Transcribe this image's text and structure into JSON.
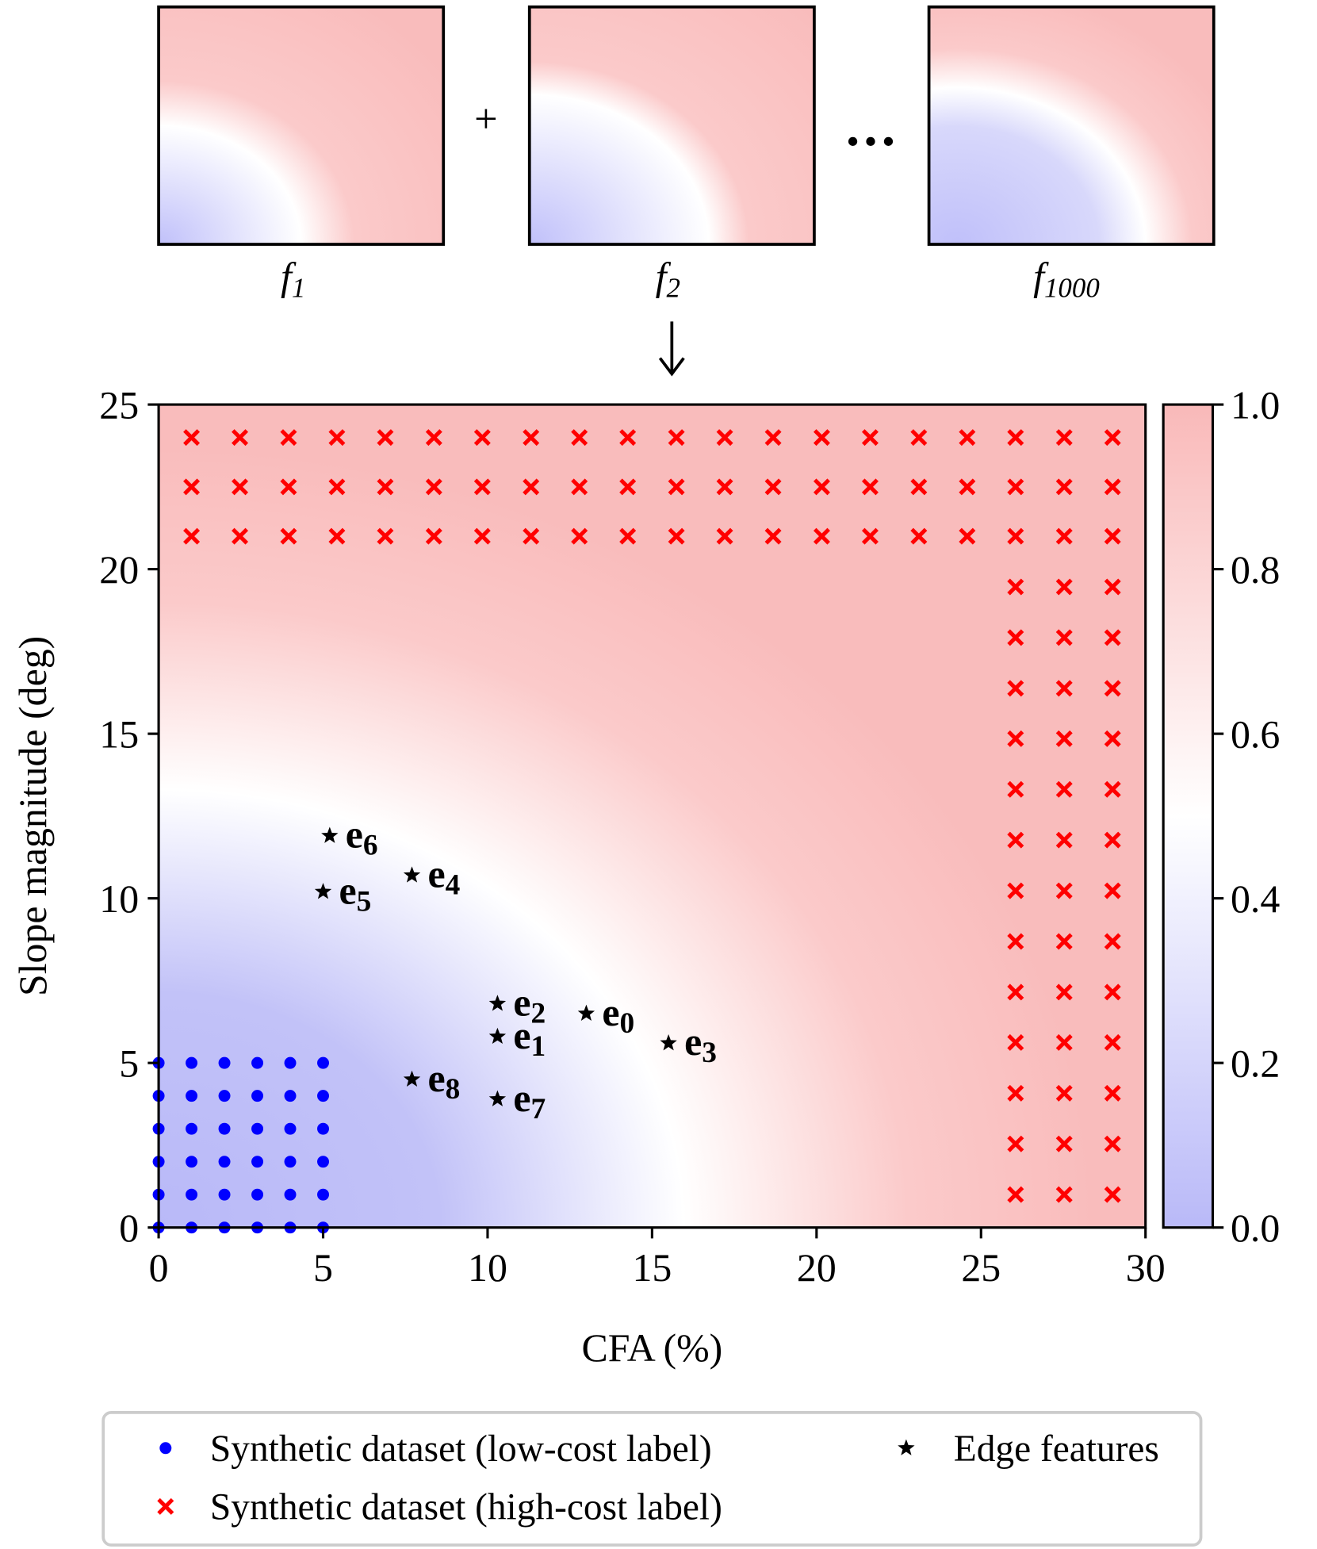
{
  "top": {
    "panels": [
      {
        "base": "f",
        "sub": "1"
      },
      {
        "base": "f",
        "sub": "2"
      },
      {
        "base": "f",
        "sub": "1000"
      }
    ],
    "plus": "+"
  },
  "chart_data": {
    "type": "scatter",
    "xlabel": "CFA (%)",
    "ylabel": "Slope magnitude (deg)",
    "xlim": [
      0,
      30
    ],
    "ylim": [
      0,
      25
    ],
    "xticks": [
      0,
      5,
      10,
      15,
      20,
      25,
      30
    ],
    "yticks": [
      0,
      5,
      10,
      15,
      20,
      25
    ],
    "colorbar": {
      "lim": [
        0,
        1
      ],
      "ticks": [
        {
          "value": 0,
          "label": "0.0"
        },
        {
          "value": 0.2,
          "label": "0.2"
        },
        {
          "value": 0.4,
          "label": "0.4"
        },
        {
          "value": 0.6,
          "label": "0.6"
        },
        {
          "value": 0.8,
          "label": "0.8"
        },
        {
          "value": 1,
          "label": "1.0"
        }
      ]
    },
    "series": [
      {
        "name": "Synthetic dataset (low-cost label)",
        "color": "#0000ff",
        "marker": "circle",
        "x": [
          0,
          0,
          0,
          0,
          0,
          0,
          1,
          1,
          1,
          1,
          1,
          1,
          2,
          2,
          2,
          2,
          2,
          2,
          3,
          3,
          3,
          3,
          3,
          3,
          4,
          4,
          4,
          4,
          4,
          4,
          5,
          5,
          5,
          5,
          5,
          5
        ],
        "y": [
          0,
          1,
          2,
          3,
          4,
          5,
          0,
          1,
          2,
          3,
          4,
          5,
          0,
          1,
          2,
          3,
          4,
          5,
          0,
          1,
          2,
          3,
          4,
          5,
          0,
          1,
          2,
          3,
          4,
          5,
          0,
          1,
          2,
          3,
          4,
          5
        ]
      },
      {
        "name": "Synthetic dataset (high-cost label)",
        "color": "#ff0000",
        "marker": "cross",
        "x": [
          1,
          2.47,
          3.95,
          5.42,
          6.89,
          8.37,
          9.84,
          11.32,
          12.79,
          14.26,
          15.74,
          17.21,
          18.68,
          20.16,
          21.63,
          23.11,
          24.58,
          26.05,
          27.53,
          29,
          1,
          2.47,
          3.95,
          5.42,
          6.89,
          8.37,
          9.84,
          11.32,
          12.79,
          14.26,
          15.74,
          17.21,
          18.68,
          20.16,
          21.63,
          23.11,
          24.58,
          26.05,
          27.53,
          29,
          1,
          2.47,
          3.95,
          5.42,
          6.89,
          8.37,
          9.84,
          11.32,
          12.79,
          14.26,
          15.74,
          17.21,
          18.68,
          20.16,
          21.63,
          23.11,
          24.58,
          26.05,
          27.53,
          29,
          26.05,
          27.53,
          29,
          26.05,
          27.53,
          29,
          26.05,
          27.53,
          29,
          26.05,
          27.53,
          29,
          26.05,
          27.53,
          29,
          26.05,
          27.53,
          29,
          26.05,
          27.53,
          29,
          26.05,
          27.53,
          29,
          26.05,
          27.53,
          29,
          26.05,
          27.53,
          29,
          26.05,
          27.53,
          29,
          26.05,
          27.53,
          29,
          26.05,
          27.53,
          29
        ],
        "y": [
          21,
          21,
          21,
          21,
          21,
          21,
          21,
          21,
          21,
          21,
          21,
          21,
          21,
          21,
          21,
          21,
          21,
          21,
          21,
          21,
          22.5,
          22.5,
          22.5,
          22.5,
          22.5,
          22.5,
          22.5,
          22.5,
          22.5,
          22.5,
          22.5,
          22.5,
          22.5,
          22.5,
          22.5,
          22.5,
          22.5,
          22.5,
          22.5,
          22.5,
          24,
          24,
          24,
          24,
          24,
          24,
          24,
          24,
          24,
          24,
          24,
          24,
          24,
          24,
          24,
          24,
          24,
          24,
          24,
          24,
          1,
          1,
          1,
          2.54,
          2.54,
          2.54,
          4.08,
          4.08,
          4.08,
          5.62,
          5.62,
          5.62,
          7.15,
          7.15,
          7.15,
          8.69,
          8.69,
          8.69,
          10.23,
          10.23,
          10.23,
          11.77,
          11.77,
          11.77,
          13.31,
          13.31,
          13.31,
          14.85,
          14.85,
          14.85,
          16.38,
          16.38,
          16.38,
          17.92,
          17.92,
          17.92,
          19.46,
          19.46,
          19.46
        ]
      },
      {
        "name": "Edge features",
        "color": "#000000",
        "marker": "star",
        "x": [
          13.0,
          10.3,
          10.3,
          15.5,
          7.7,
          5.0,
          5.2,
          10.3,
          7.7
        ],
        "y": [
          6.5,
          5.8,
          6.8,
          5.6,
          10.7,
          10.2,
          11.9,
          3.9,
          4.5
        ],
        "point_labels": [
          {
            "base": "e",
            "sub": "0"
          },
          {
            "base": "e",
            "sub": "1"
          },
          {
            "base": "e",
            "sub": "2"
          },
          {
            "base": "e",
            "sub": "3"
          },
          {
            "base": "e",
            "sub": "4"
          },
          {
            "base": "e",
            "sub": "5"
          },
          {
            "base": "e",
            "sub": "6"
          },
          {
            "base": "e",
            "sub": "7"
          },
          {
            "base": "e",
            "sub": "8"
          }
        ]
      }
    ]
  }
}
